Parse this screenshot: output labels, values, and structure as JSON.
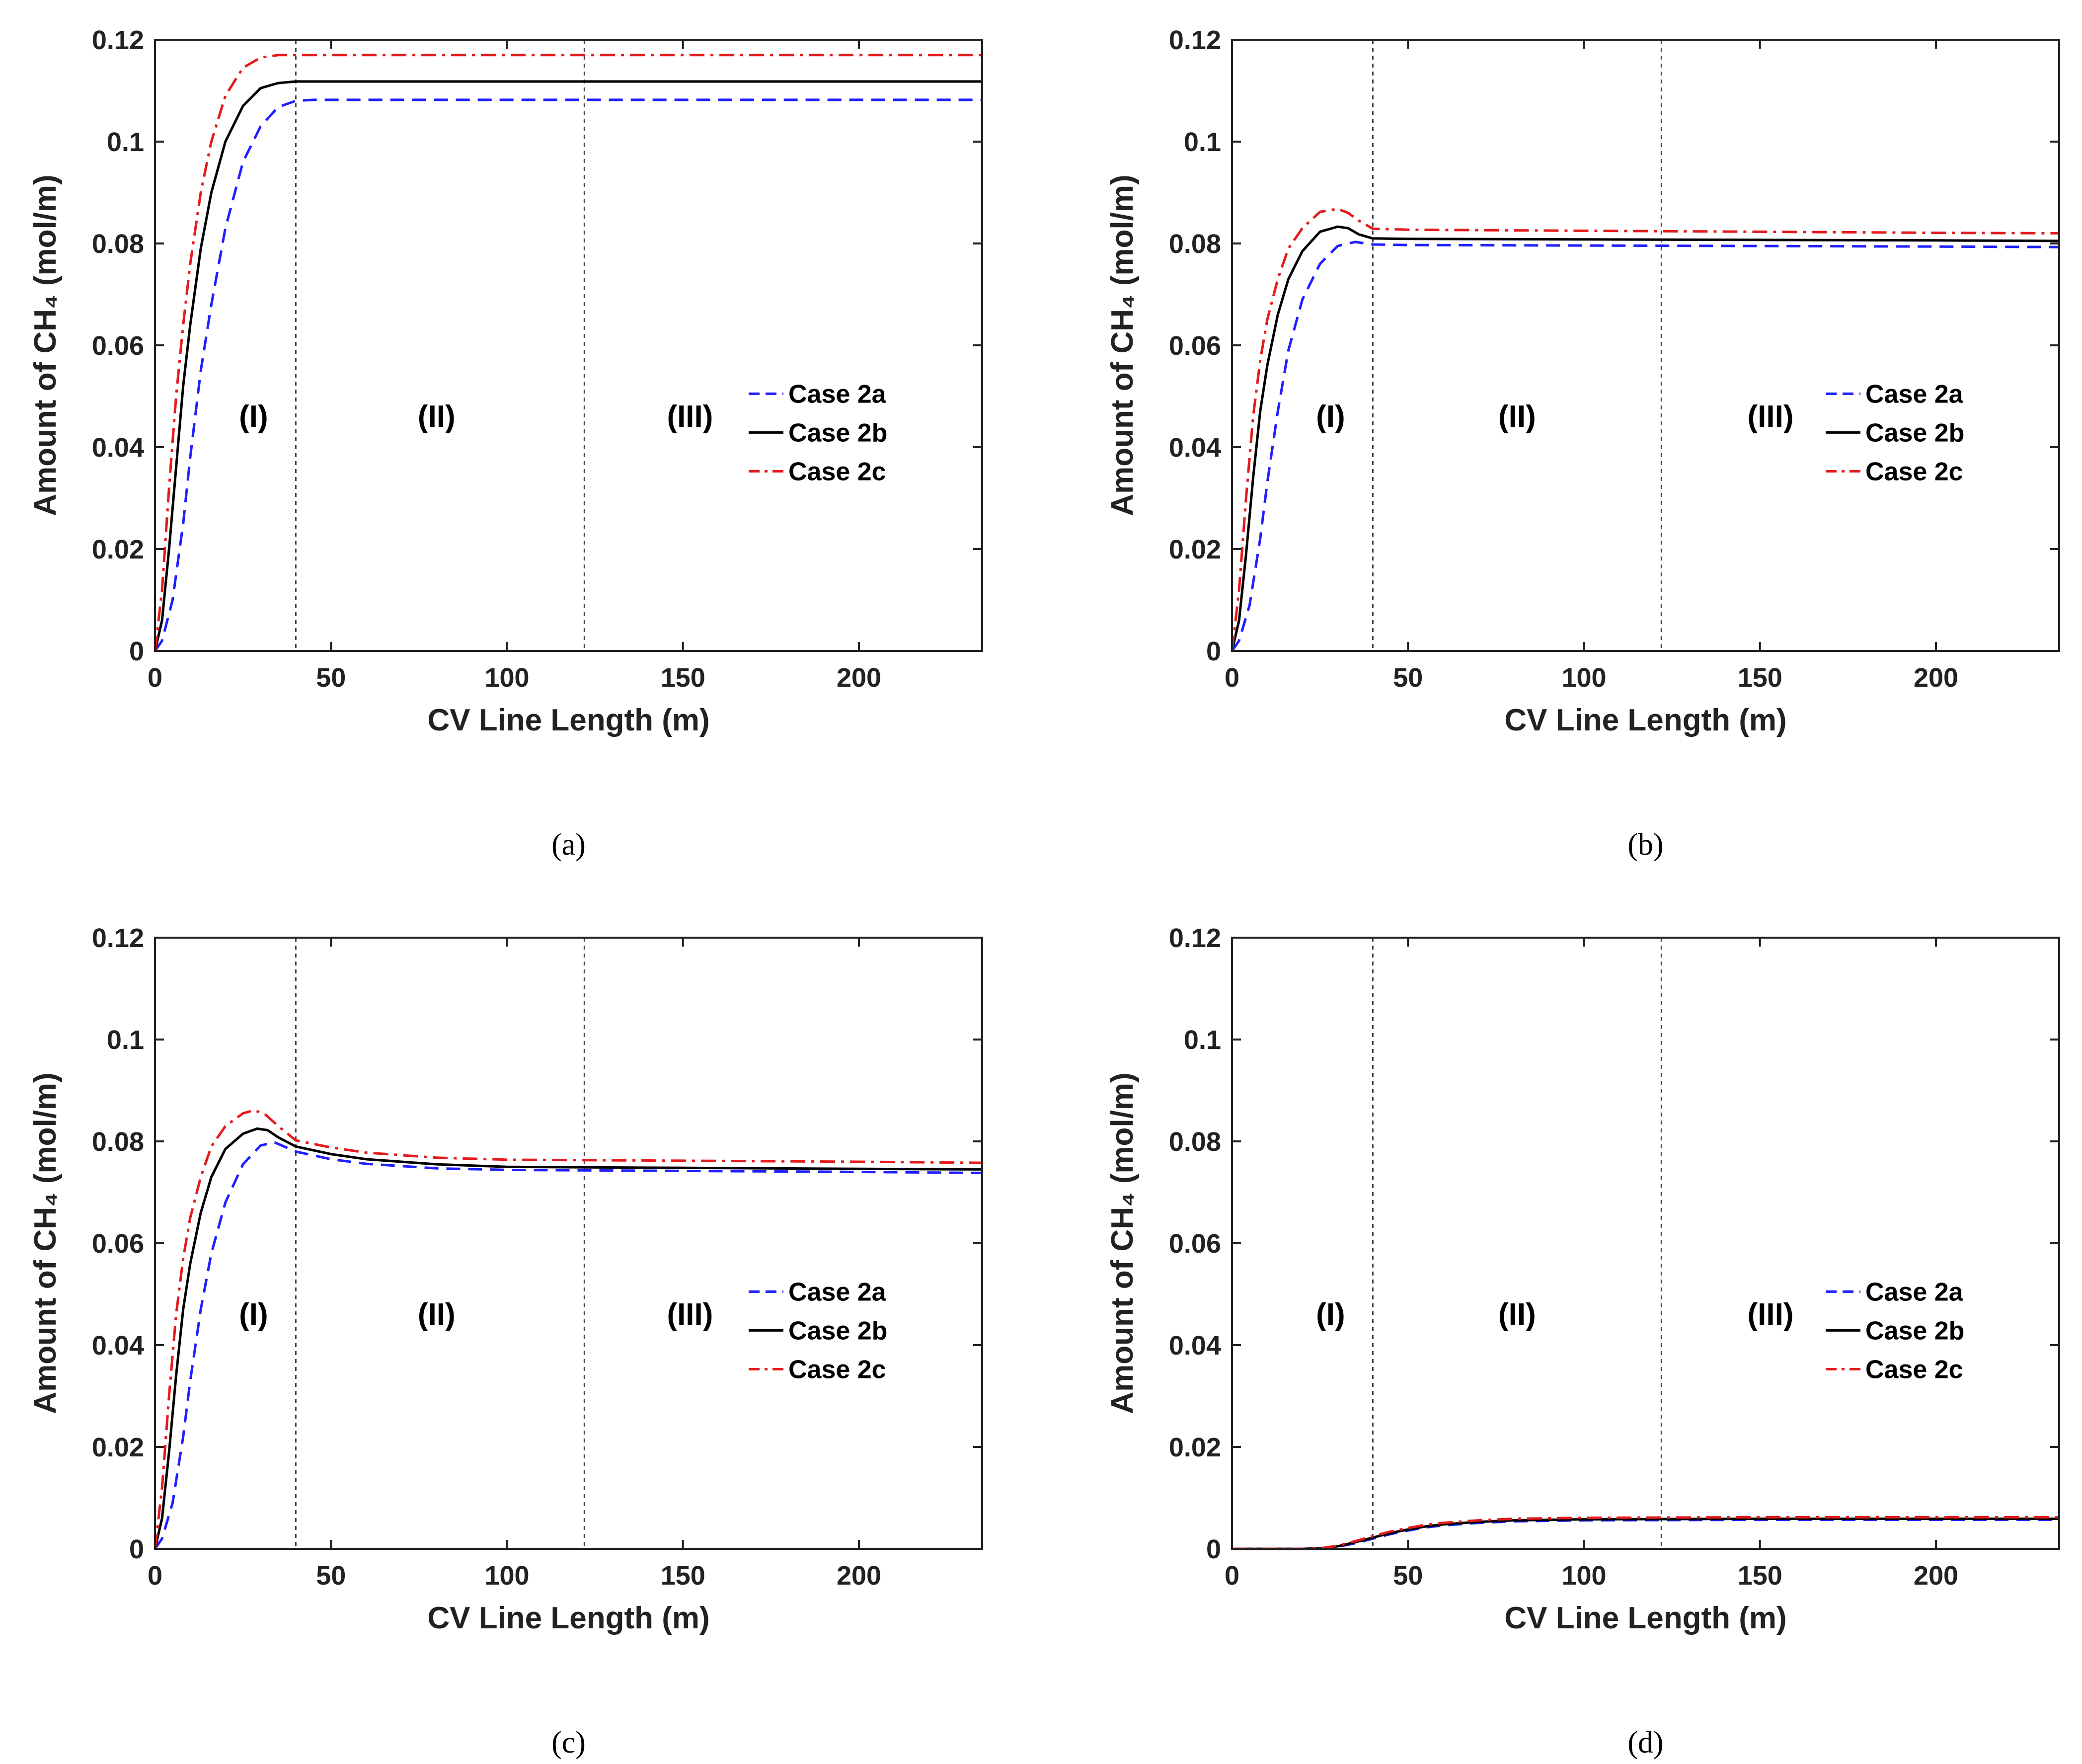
{
  "chart_data": [
    {
      "type": "line",
      "panel_label": "(a)",
      "xlabel": "CV Line Length (m)",
      "ylabel": "Amount of CH₄ (mol/m)",
      "xlim": [
        0,
        235
      ],
      "ylim": [
        0,
        0.12
      ],
      "xticks": [
        "0",
        "50",
        "100",
        "150",
        "200"
      ],
      "yticks": [
        "0",
        "0.02",
        "0.04",
        "0.06",
        "0.08",
        "0.1",
        "0.12"
      ],
      "region_boundaries": [
        40,
        122
      ],
      "region_labels": [
        {
          "text": "(I)",
          "x": 28
        },
        {
          "text": "(II)",
          "x": 80
        },
        {
          "text": "(III)",
          "x": 152
        }
      ],
      "legend_position": "center-right",
      "series": [
        {
          "name": "Case 2a",
          "color": "#1f1fff",
          "style": "dashed",
          "x": [
            0,
            2,
            5,
            8,
            10,
            13,
            16,
            20,
            25,
            30,
            35,
            40,
            45,
            50,
            235
          ],
          "y": [
            0,
            0.002,
            0.01,
            0.025,
            0.038,
            0.055,
            0.068,
            0.083,
            0.096,
            0.103,
            0.1068,
            0.108,
            0.1082,
            0.1082,
            0.1082
          ]
        },
        {
          "name": "Case 2b",
          "color": "#000000",
          "style": "solid",
          "x": [
            0,
            2,
            4,
            6,
            8,
            10,
            13,
            16,
            20,
            25,
            30,
            35,
            40,
            45,
            235
          ],
          "y": [
            0,
            0.006,
            0.02,
            0.036,
            0.052,
            0.064,
            0.079,
            0.09,
            0.1,
            0.107,
            0.1105,
            0.1115,
            0.1118,
            0.1118,
            0.1118
          ]
        },
        {
          "name": "Case 2c",
          "color": "#e41a1c",
          "style": "dashdot",
          "x": [
            0,
            2,
            4,
            6,
            8,
            10,
            13,
            16,
            20,
            25,
            30,
            35,
            40,
            235
          ],
          "y": [
            0,
            0.012,
            0.032,
            0.05,
            0.064,
            0.076,
            0.09,
            0.1,
            0.109,
            0.1145,
            0.1165,
            0.117,
            0.117,
            0.117
          ]
        }
      ]
    },
    {
      "type": "line",
      "panel_label": "(b)",
      "xlabel": "CV Line Length (m)",
      "ylabel": "Amount of CH₄ (mol/m)",
      "xlim": [
        0,
        235
      ],
      "ylim": [
        0,
        0.12
      ],
      "xticks": [
        "0",
        "50",
        "100",
        "150",
        "200"
      ],
      "yticks": [
        "0",
        "0.02",
        "0.04",
        "0.06",
        "0.08",
        "0.1",
        "0.12"
      ],
      "region_boundaries": [
        40,
        122
      ],
      "region_labels": [
        {
          "text": "(I)",
          "x": 28
        },
        {
          "text": "(II)",
          "x": 81
        },
        {
          "text": "(III)",
          "x": 153
        }
      ],
      "legend_position": "center-right",
      "series": [
        {
          "name": "Case 2a",
          "color": "#1f1fff",
          "style": "dashed",
          "x": [
            0,
            2,
            5,
            8,
            10,
            13,
            16,
            20,
            25,
            30,
            35,
            40,
            50,
            100,
            150,
            200,
            235
          ],
          "y": [
            0,
            0.002,
            0.009,
            0.022,
            0.033,
            0.047,
            0.059,
            0.069,
            0.076,
            0.0795,
            0.0803,
            0.0798,
            0.0797,
            0.0796,
            0.0795,
            0.0794,
            0.0793
          ]
        },
        {
          "name": "Case 2b",
          "color": "#000000",
          "style": "solid",
          "x": [
            0,
            2,
            4,
            6,
            8,
            10,
            13,
            16,
            20,
            25,
            30,
            33,
            36,
            40,
            50,
            100,
            150,
            200,
            235
          ],
          "y": [
            0,
            0.006,
            0.019,
            0.034,
            0.047,
            0.056,
            0.066,
            0.073,
            0.0785,
            0.0823,
            0.0833,
            0.083,
            0.0818,
            0.081,
            0.0809,
            0.0808,
            0.0807,
            0.0806,
            0.0805
          ]
        },
        {
          "name": "Case 2c",
          "color": "#e41a1c",
          "style": "dashdot",
          "x": [
            0,
            2,
            4,
            6,
            8,
            10,
            13,
            16,
            20,
            25,
            30,
            33,
            36,
            40,
            50,
            100,
            150,
            200,
            235
          ],
          "y": [
            0,
            0.012,
            0.03,
            0.046,
            0.057,
            0.065,
            0.073,
            0.079,
            0.083,
            0.0862,
            0.0868,
            0.086,
            0.0845,
            0.0829,
            0.0827,
            0.0825,
            0.0823,
            0.0821,
            0.082
          ]
        }
      ]
    },
    {
      "type": "line",
      "panel_label": "(c)",
      "xlabel": "CV Line Length (m)",
      "ylabel": "Amount of CH₄ (mol/m)",
      "xlim": [
        0,
        235
      ],
      "ylim": [
        0,
        0.12
      ],
      "xticks": [
        "0",
        "50",
        "100",
        "150",
        "200"
      ],
      "yticks": [
        "0",
        "0.02",
        "0.04",
        "0.06",
        "0.08",
        "0.1",
        "0.12"
      ],
      "region_boundaries": [
        40,
        122
      ],
      "region_labels": [
        {
          "text": "(I)",
          "x": 28
        },
        {
          "text": "(II)",
          "x": 80
        },
        {
          "text": "(III)",
          "x": 152
        }
      ],
      "legend_position": "center-right",
      "series": [
        {
          "name": "Case 2a",
          "color": "#1f1fff",
          "style": "dashed",
          "x": [
            0,
            2,
            5,
            8,
            10,
            13,
            16,
            20,
            25,
            30,
            34,
            40,
            50,
            60,
            80,
            100,
            150,
            200,
            235
          ],
          "y": [
            0,
            0.002,
            0.009,
            0.022,
            0.033,
            0.047,
            0.058,
            0.068,
            0.0755,
            0.0792,
            0.0798,
            0.078,
            0.0765,
            0.0756,
            0.0747,
            0.0744,
            0.0742,
            0.074,
            0.0738
          ]
        },
        {
          "name": "Case 2b",
          "color": "#000000",
          "style": "solid",
          "x": [
            0,
            2,
            4,
            6,
            8,
            10,
            13,
            16,
            20,
            25,
            29,
            32,
            35,
            40,
            50,
            60,
            80,
            100,
            150,
            200,
            235
          ],
          "y": [
            0,
            0.006,
            0.019,
            0.034,
            0.047,
            0.056,
            0.066,
            0.073,
            0.0785,
            0.0815,
            0.0825,
            0.0822,
            0.0808,
            0.079,
            0.0775,
            0.0765,
            0.0755,
            0.075,
            0.0748,
            0.0746,
            0.0745
          ]
        },
        {
          "name": "Case 2c",
          "color": "#e41a1c",
          "style": "dashdot",
          "x": [
            0,
            2,
            4,
            6,
            8,
            10,
            13,
            16,
            20,
            25,
            28,
            31,
            35,
            40,
            50,
            60,
            80,
            100,
            150,
            200,
            235
          ],
          "y": [
            0,
            0.012,
            0.03,
            0.046,
            0.057,
            0.065,
            0.073,
            0.079,
            0.083,
            0.0855,
            0.0861,
            0.0855,
            0.083,
            0.0802,
            0.0788,
            0.0778,
            0.0768,
            0.0764,
            0.0762,
            0.076,
            0.0758
          ]
        }
      ]
    },
    {
      "type": "line",
      "panel_label": "(d)",
      "xlabel": "CV Line Length (m)",
      "ylabel": "Amount of CH₄ (mol/m)",
      "xlim": [
        0,
        235
      ],
      "ylim": [
        0,
        0.12
      ],
      "xticks": [
        "0",
        "50",
        "100",
        "150",
        "200"
      ],
      "yticks": [
        "0",
        "0.02",
        "0.04",
        "0.06",
        "0.08",
        "0.1",
        "0.12"
      ],
      "region_boundaries": [
        40,
        122
      ],
      "region_labels": [
        {
          "text": "(I)",
          "x": 28
        },
        {
          "text": "(II)",
          "x": 81
        },
        {
          "text": "(III)",
          "x": 153
        }
      ],
      "legend_position": "center-right",
      "series": [
        {
          "name": "Case 2a",
          "color": "#1f1fff",
          "style": "dashed",
          "x": [
            0,
            20,
            25,
            30,
            35,
            40,
            45,
            50,
            55,
            60,
            70,
            80,
            100,
            150,
            200,
            235
          ],
          "y": [
            0,
            0,
            0.0001,
            0.0004,
            0.0011,
            0.002,
            0.0029,
            0.0036,
            0.0042,
            0.0046,
            0.0051,
            0.0054,
            0.0056,
            0.0057,
            0.0057,
            0.0057
          ]
        },
        {
          "name": "Case 2b",
          "color": "#000000",
          "style": "solid",
          "x": [
            0,
            20,
            25,
            30,
            35,
            40,
            45,
            50,
            55,
            60,
            70,
            80,
            100,
            150,
            200,
            235
          ],
          "y": [
            0,
            0,
            0.0001,
            0.0005,
            0.0013,
            0.0022,
            0.0031,
            0.0038,
            0.0044,
            0.0048,
            0.0053,
            0.0056,
            0.0058,
            0.0059,
            0.0059,
            0.0059
          ]
        },
        {
          "name": "Case 2c",
          "color": "#e41a1c",
          "style": "dashdot",
          "x": [
            0,
            20,
            25,
            30,
            35,
            40,
            45,
            50,
            55,
            60,
            70,
            80,
            100,
            150,
            200,
            235
          ],
          "y": [
            0,
            0,
            0.0001,
            0.0006,
            0.0015,
            0.0025,
            0.0034,
            0.0041,
            0.0047,
            0.0051,
            0.0056,
            0.0059,
            0.0061,
            0.0062,
            0.0062,
            0.0062
          ]
        }
      ]
    }
  ]
}
